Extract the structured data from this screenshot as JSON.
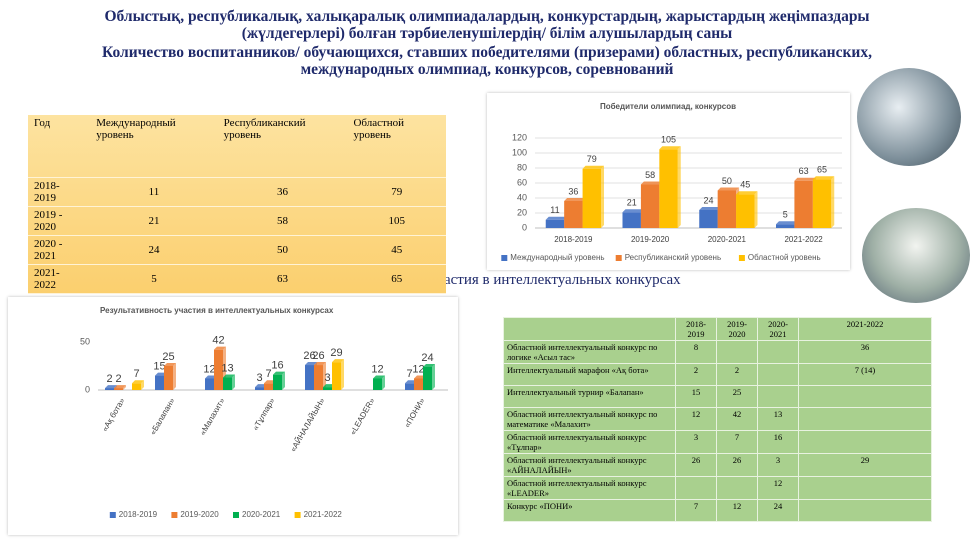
{
  "title": [
    "Облыстық, республикалық, халықаралық олимпиадалардың, конкурстардың, жарыстардың жеңімпаздары",
    "(жүлдегерлері) болған тәрбиеленушілердің/ білім алушылардың саны",
    "Количество воспитанников/ обучающихся, ставших победителями (призерами) областных, республиканских,",
    "международных олимпиад, конкурсов, соревнований"
  ],
  "section_title": "Результативность участия в интеллектуальных конкурсах",
  "tables": [
    {
      "header": [
        "Год",
        "Международный уровень",
        "Республиканский уровень",
        "Областной уровень"
      ],
      "rows": [
        [
          "2018-  2019",
          11,
          36,
          79
        ],
        [
          "2019 - 2020",
          21,
          58,
          105
        ],
        [
          "2020 - 2021",
          24,
          50,
          45
        ],
        [
          "2021-  2022",
          5,
          63,
          65
        ]
      ]
    },
    {
      "header": [
        null,
        "2018-2019",
        "2019-2020",
        "2020-2021",
        "2021-2022"
      ],
      "rows": [
        [
          "Областной интеллектуальный конкурс по логике «Асыл тас»",
          8,
          null,
          null,
          36
        ],
        [
          "Интеллектуальный марафон «Ақ бота»",
          2,
          2,
          null,
          "7 (14)"
        ],
        [
          "Интеллектуальный турнир «Балапан»",
          15,
          25,
          null,
          null
        ],
        [
          "Областной интеллектуальный конкурс по математике «Малахит»",
          12,
          42,
          13,
          null
        ],
        [
          "Областной интеллектуальный конкурс «Тұлпар»",
          3,
          7,
          16,
          null
        ],
        [
          "Областной интеллектуальный конкурс «АЙНАЛАЙЫН»",
          26,
          26,
          3,
          29
        ],
        [
          "Областной интеллектуальный конкурс «LEADER»",
          null,
          null,
          12,
          null
        ],
        [
          "Конкурс «ПОНИ»",
          7,
          12,
          24,
          null
        ]
      ]
    }
  ],
  "chart_data": [
    {
      "type": "bar",
      "title": "Победители олимпиад, конкурсов",
      "categories": [
        "2018-2019",
        "2019-2020",
        "2020-2021",
        "2021-2022"
      ],
      "series": [
        {
          "name": "Международный уровень",
          "color": "#4472c4",
          "values": [
            11,
            21,
            24,
            5
          ]
        },
        {
          "name": "Республиканский уровень",
          "color": "#ed7d31",
          "values": [
            36,
            58,
            50,
            63
          ]
        },
        {
          "name": "Областной уровень",
          "color": "#ffc000",
          "values": [
            79,
            105,
            45,
            65
          ]
        }
      ],
      "ylim": [
        0,
        120
      ],
      "yticks": [
        0,
        20,
        40,
        60,
        80,
        100,
        120
      ],
      "grid": true,
      "legend": "bottom"
    },
    {
      "type": "bar",
      "title": "Результативность участия в интеллектуальных конкурсах",
      "categories": [
        "«Ақ бота»",
        "«Балапан»",
        "«Малахит»",
        "«Тұлпар»",
        "«АЙНАЛАЙЫН»",
        "«LEADER»",
        "«ПОНИ»"
      ],
      "series": [
        {
          "name": "2018-2019",
          "color": "#4472c4",
          "values": [
            2,
            15,
            12,
            3,
            26,
            null,
            7
          ]
        },
        {
          "name": "2019-2020",
          "color": "#ed7d31",
          "values": [
            2,
            25,
            42,
            7,
            26,
            null,
            12
          ]
        },
        {
          "name": "2020-2021",
          "color": "#00b050",
          "values": [
            null,
            null,
            13,
            16,
            3,
            12,
            24
          ]
        },
        {
          "name": "2021-2022",
          "color": "#ffc000",
          "values": [
            7,
            null,
            null,
            null,
            29,
            null,
            null
          ]
        }
      ],
      "ylim": [
        0,
        50
      ],
      "yticks": [
        0,
        50
      ],
      "grid": false,
      "legend": "bottom"
    }
  ]
}
